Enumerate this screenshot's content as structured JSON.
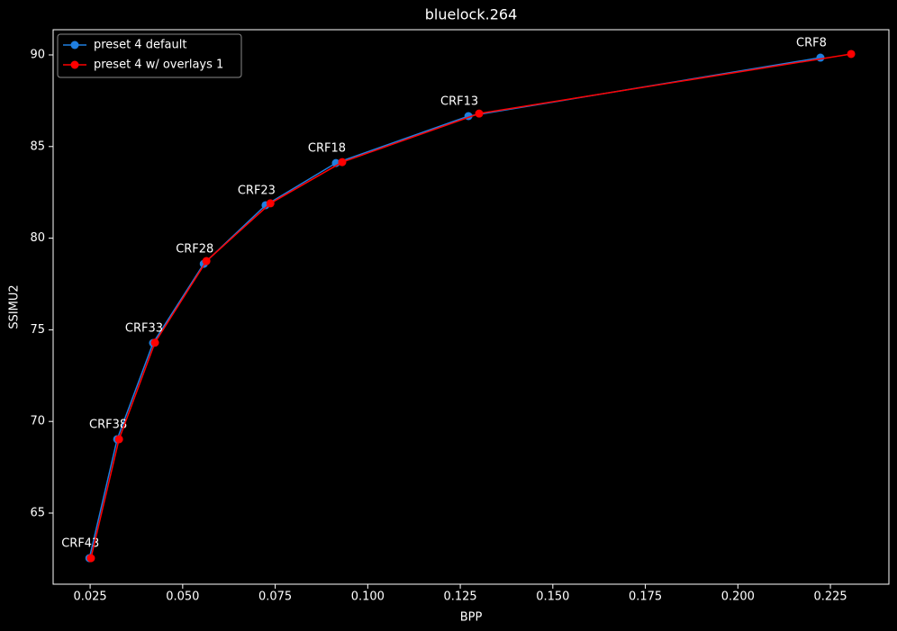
{
  "chart_data": {
    "type": "line",
    "title": "bluelock.264",
    "x_label": "BPP",
    "y_label": "SSIMU2",
    "series": [
      {
        "name": "preset 4 default",
        "color": "#1f7fe0",
        "x": [
          0.0248,
          0.0323,
          0.042,
          0.0557,
          0.0724,
          0.0914,
          0.1272,
          0.2223
        ],
        "values": [
          62.54,
          69.03,
          74.28,
          78.6,
          81.8,
          84.1,
          86.66,
          89.85
        ],
        "point_labels": [
          "CRF43",
          "CRF38",
          "CRF33",
          "CRF28",
          "CRF23",
          "CRF18",
          "CRF13",
          "CRF8"
        ]
      },
      {
        "name": "preset 4 w/ overlays 1",
        "color": "#ff0000",
        "x": [
          0.0252,
          0.0328,
          0.0425,
          0.0564,
          0.0737,
          0.0931,
          0.1301,
          0.2306
        ],
        "values": [
          62.54,
          69.03,
          74.3,
          78.75,
          81.9,
          84.15,
          86.8,
          90.05
        ]
      }
    ],
    "xlim": [
      0.015,
      0.2408
    ],
    "ylim": [
      61.12,
      91.375
    ],
    "xticks": [
      0.025,
      {
        "value": 0.05,
        "label": "0.050"
      },
      0.075,
      {
        "value": 0.1,
        "label": "0.100"
      },
      0.125,
      {
        "value": 0.15,
        "label": "0.150"
      },
      0.175,
      {
        "value": 0.2,
        "label": "0.200"
      },
      0.225
    ],
    "yticks": [
      65,
      70,
      75,
      80,
      85,
      90
    ],
    "legend": "upper left"
  }
}
